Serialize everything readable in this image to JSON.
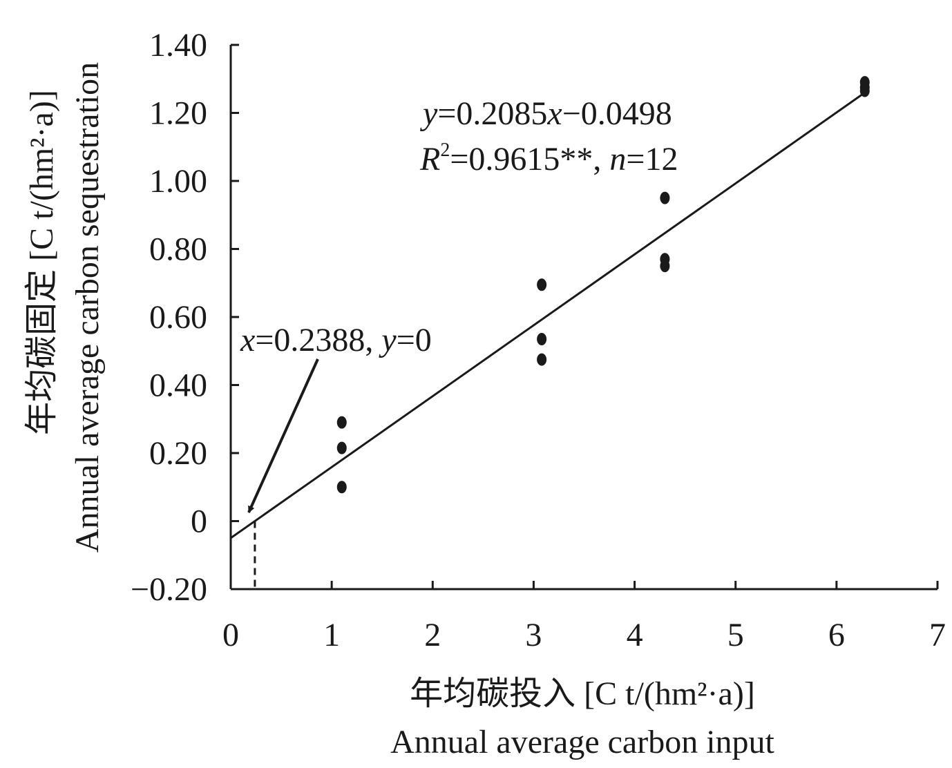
{
  "chart_data": {
    "type": "scatter",
    "xlim": [
      0,
      7
    ],
    "ylim": [
      -0.2,
      1.4
    ],
    "x_ticks": [
      "0",
      "1",
      "2",
      "3",
      "4",
      "5",
      "6",
      "7"
    ],
    "y_ticks": [
      "−0.20",
      "0",
      "0.20",
      "0.40",
      "0.60",
      "0.80",
      "1.00",
      "1.20",
      "1.40"
    ],
    "xlabel_cn": "年均碳投入 [C t/(hm²·a)]",
    "xlabel_en": "Annual average carbon input",
    "ylabel_cn": "年均碳固定 [C t/(hm²·a)]",
    "ylabel_en": "Annual average carbon sequestration",
    "grid": false,
    "points": {
      "x": [
        1.1,
        1.1,
        1.1,
        3.08,
        3.08,
        3.08,
        4.3,
        4.3,
        4.3,
        6.28,
        6.28,
        6.28
      ],
      "y": [
        0.29,
        0.215,
        0.1,
        0.695,
        0.535,
        0.475,
        0.95,
        0.77,
        0.75,
        1.29,
        1.275,
        1.265
      ]
    },
    "fit": {
      "slope": 0.2085,
      "intercept": -0.0498,
      "x_range": [
        0,
        6.28
      ]
    },
    "x_intercept": 0.2388,
    "equation": {
      "y_var": "y",
      "rhs": "=0.2085",
      "x_var": "x",
      "rhs2": "−0.0498"
    },
    "stats": {
      "r_var": "R",
      "r_sup": "2",
      "r_val": "=0.9615**, ",
      "n_var": "n",
      "n_val": "=12"
    },
    "annotation": {
      "x_var": "x",
      "x_val": "=0.2388, ",
      "y_var": "y",
      "y_val": "=0"
    }
  }
}
